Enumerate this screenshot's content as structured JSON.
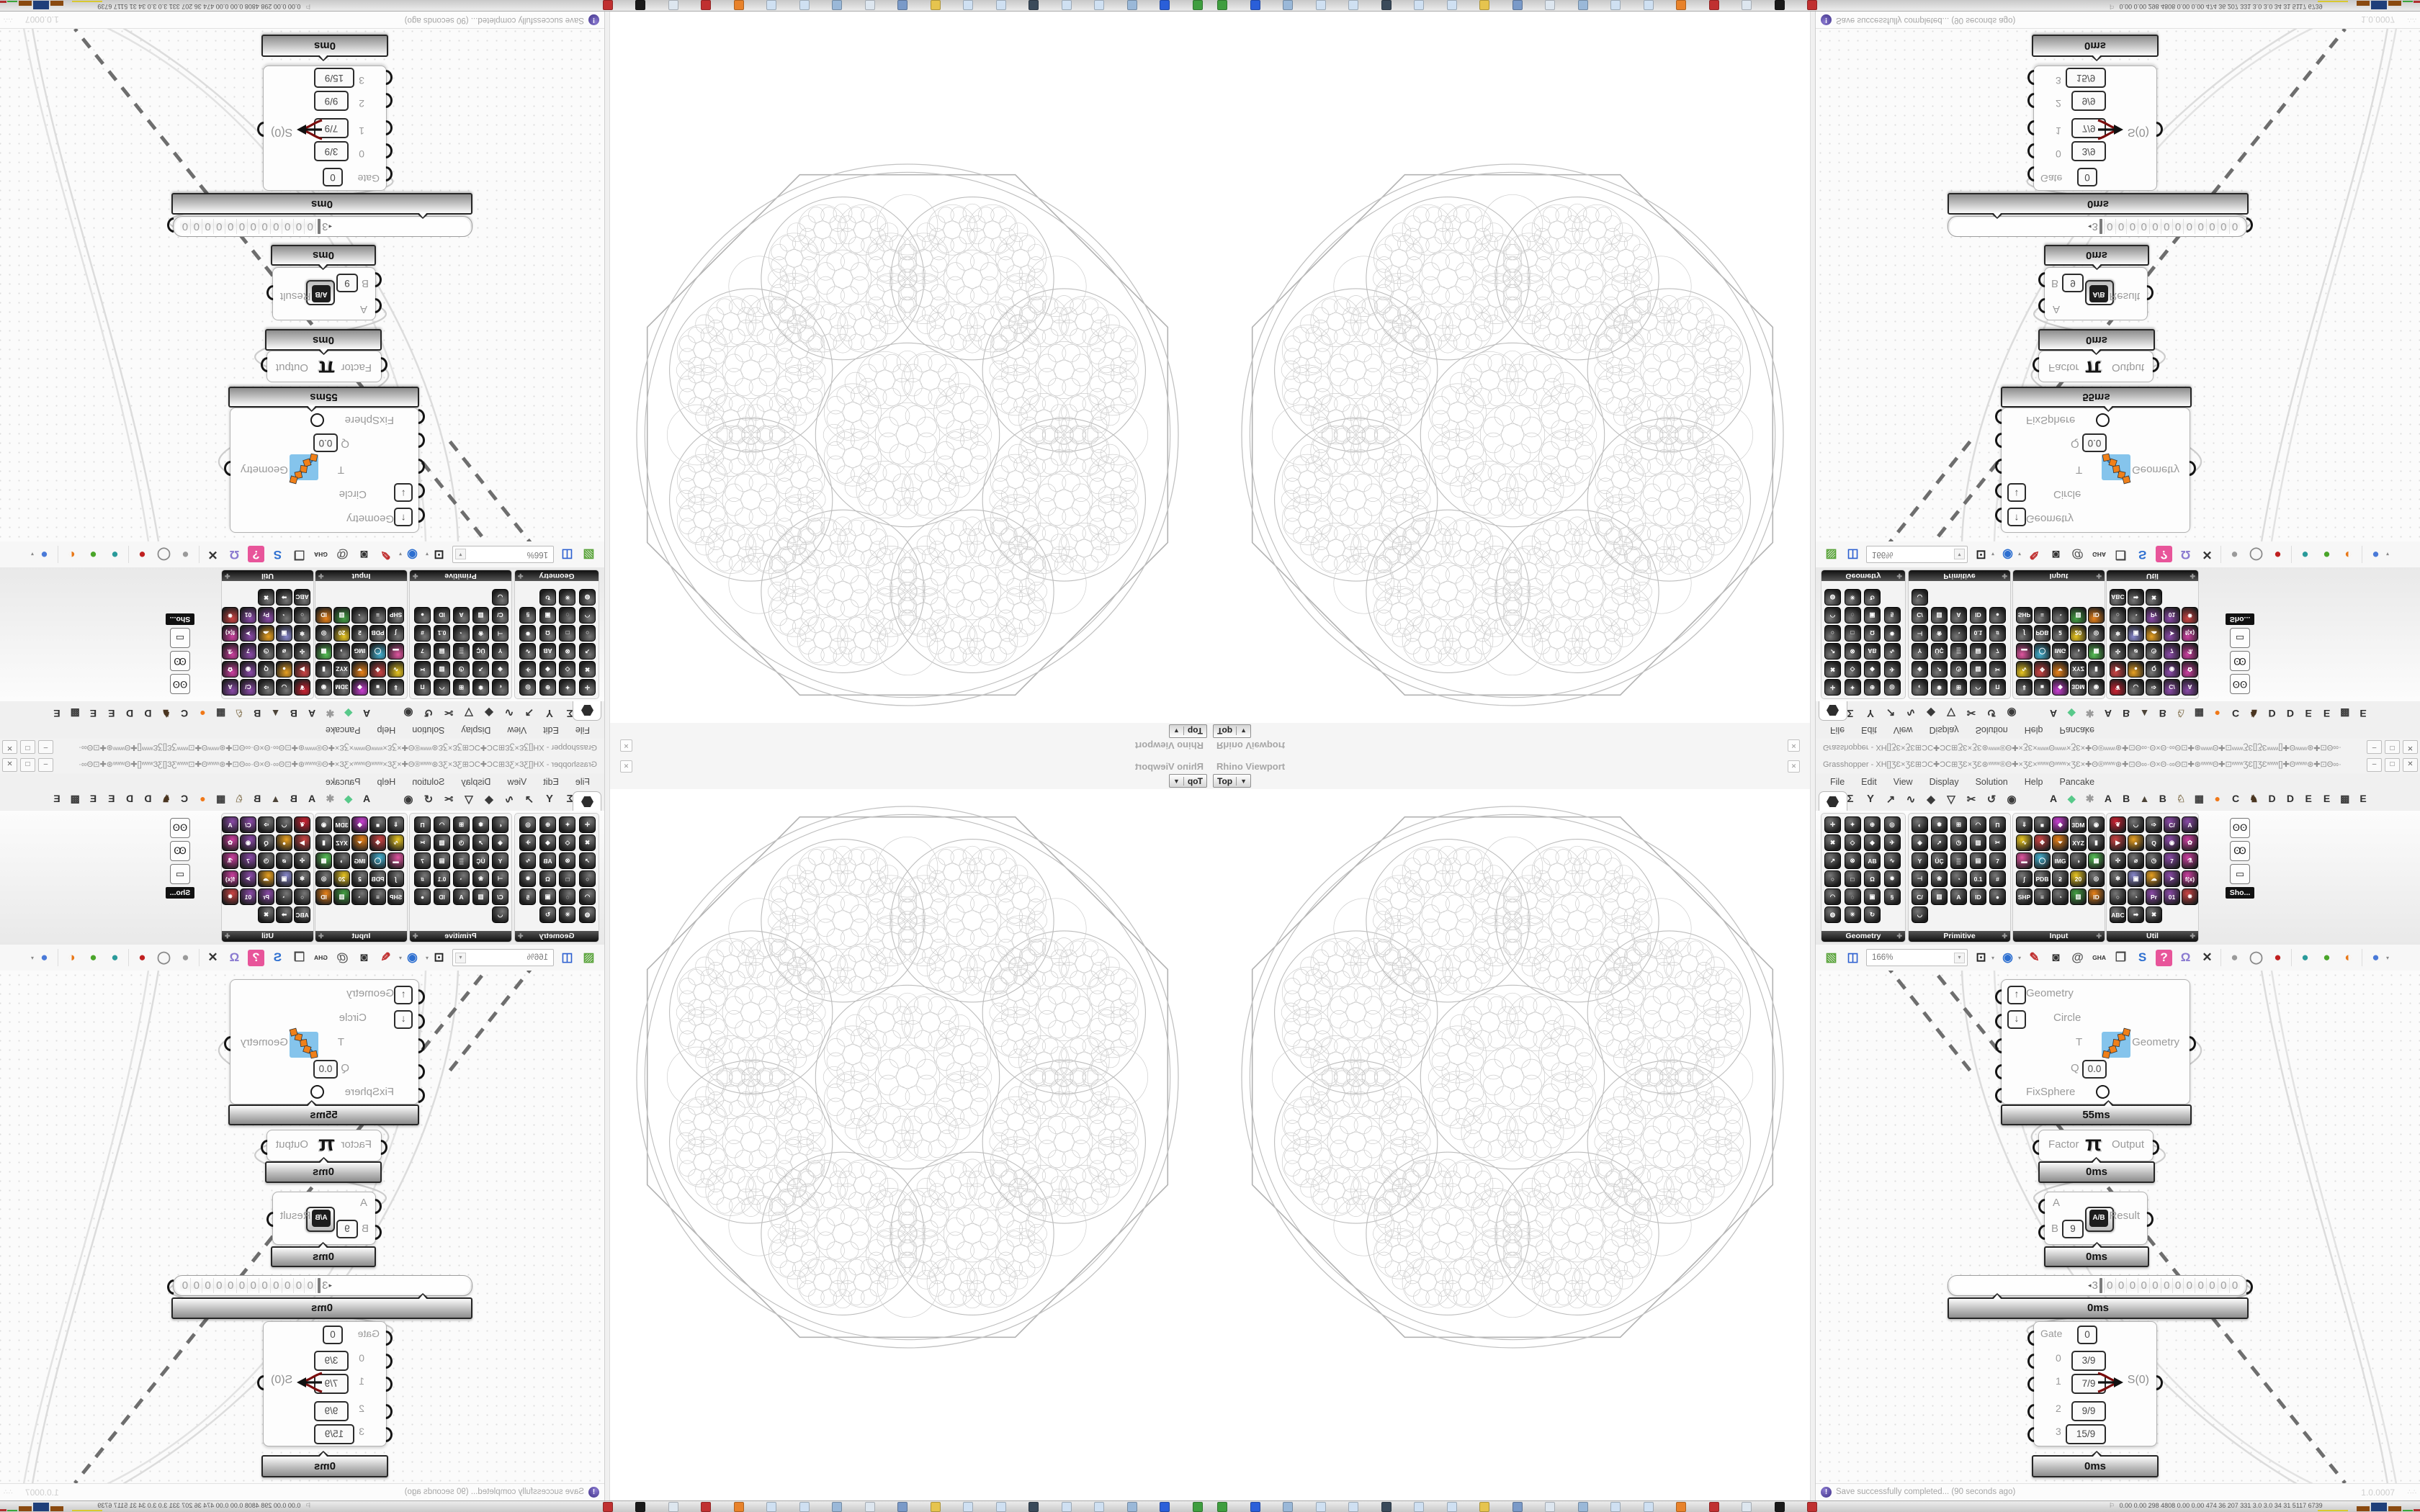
{
  "viewport": {
    "panel_title": "Rhino Viewport",
    "view": "Top",
    "close_glyph": "✕",
    "content_description": "octagonal Apollonian circle-packing fractal wireframe, light grey on white"
  },
  "window": {
    "title": "Grasshopper - XH[]ƷƐ×ƷƐ⊞ƆC✚ƆC⊞ƷƐ×ƷƐ⊛ʷʷʷ®Θ✚×ƷƐ×ʷʷʷΘʷʷʷ×ƷƐ×✚Θ®ʷʷʷ⊛✚⊡Θ∞·Θ×Θ·∞Θ⊡✚⊛ʷʷʷΘ✚⊡ʷʷʷƷƐ[]ƷƐʷʷʷ[]✚Θʷʷʷ⊛✚⊡Θ∞·Θ×Θ·∞Θ⊡✚⊛ʷʷʷ®Θ✚×ƷƐ×ʷʷʷΘ...",
    "min": "–",
    "max": "□",
    "close": "✕"
  },
  "menu": {
    "items": [
      "File",
      "Edit",
      "View",
      "Display",
      "Solution",
      "Help",
      "Pancake"
    ]
  },
  "tabs": {
    "selected": "Params",
    "icon_tabs": [
      "Σ",
      "Y",
      "↗",
      "∿",
      "◆",
      "▽",
      "✂",
      "↺",
      "◉"
    ],
    "plugin_tabs": [
      {
        "g": "A",
        "c": "#2e2e2e"
      },
      {
        "g": "◆",
        "c": "#58c98a"
      },
      {
        "g": "✱",
        "c": "#9a9a9a"
      },
      {
        "g": "A",
        "c": "#2e2e2e"
      },
      {
        "g": "B",
        "c": "#2e2e2e"
      },
      {
        "g": "▲",
        "c": "#4d4438"
      },
      {
        "g": "B",
        "c": "#2e2e2e"
      },
      {
        "g": "♘",
        "c": "#8a7a5a"
      },
      {
        "g": "▦",
        "c": "#3b3b3b"
      },
      {
        "g": "●",
        "c": "#f07818"
      },
      {
        "g": "C",
        "c": "#2e2e2e"
      },
      {
        "g": "♞",
        "c": "#4a3520"
      },
      {
        "g": "D",
        "c": "#2e2e2e"
      },
      {
        "g": "D",
        "c": "#2e2e2e"
      },
      {
        "g": "E",
        "c": "#2e2e2e"
      },
      {
        "g": "E",
        "c": "#2e2e2e"
      },
      {
        "g": "▩",
        "c": "#3b3b3b"
      },
      {
        "g": "E",
        "c": "#2e2e2e"
      }
    ]
  },
  "palette": {
    "groups": [
      {
        "label": "Geometry",
        "cols": 4,
        "icons": [
          {
            "g": "✛"
          },
          {
            "g": "✦"
          },
          {
            "g": "⊕"
          },
          {
            "g": "◎"
          },
          {
            "g": "✖"
          },
          {
            "g": "◇"
          },
          {
            "g": "◆"
          },
          {
            "g": "✈"
          },
          {
            "g": "↗"
          },
          {
            "g": "⊗"
          },
          {
            "g": "AB"
          },
          {
            "g": "∿"
          },
          {
            "g": "○"
          },
          {
            "g": "□"
          },
          {
            "g": "Ω"
          },
          {
            "g": "✸"
          },
          {
            "g": "◠"
          },
          {
            "g": "◌"
          },
          {
            "g": "▣"
          },
          {
            "g": "§"
          },
          {
            "g": "◍"
          },
          {
            "g": "✳"
          },
          {
            "g": "↻"
          }
        ]
      },
      {
        "label": "Primitive",
        "cols": 5,
        "icons": [
          {
            "g": "◐"
          },
          {
            "g": "✹"
          },
          {
            "g": "⊞"
          },
          {
            "g": "◠"
          },
          {
            "g": "Π"
          },
          {
            "g": "◈"
          },
          {
            "g": "➚"
          },
          {
            "g": "◷"
          },
          {
            "g": "▨"
          },
          {
            "g": "✂"
          },
          {
            "g": "Y"
          },
          {
            "g": "ÜÇ"
          },
          {
            "g": "▒"
          },
          {
            "g": "▤"
          },
          {
            "g": "7"
          },
          {
            "g": "⊣"
          },
          {
            "g": "❀"
          },
          {
            "g": "◔"
          },
          {
            "g": "0.1"
          },
          {
            "g": "#"
          },
          {
            "g": "C/"
          },
          {
            "g": "▥"
          },
          {
            "g": "A"
          },
          {
            "g": "ID"
          },
          {
            "g": "●"
          },
          {
            "g": "◡"
          }
        ]
      },
      {
        "label": "Input",
        "cols": 5,
        "icons": [
          {
            "g": "⇓"
          },
          {
            "g": "■"
          },
          {
            "g": "◆",
            "c": "#c93fd3"
          },
          {
            "g": "3DM"
          },
          {
            "g": "◉"
          },
          {
            "g": "∿",
            "c": "#e8c520"
          },
          {
            "g": "✥",
            "c": "#cc4444"
          },
          {
            "g": "⏷",
            "c": "#e8821a"
          },
          {
            "g": "XYZ"
          },
          {
            "g": "▮"
          },
          {
            "g": "▬",
            "c": "#e055a0"
          },
          {
            "g": "◯",
            "c": "#44b0d0"
          },
          {
            "g": "IMG"
          },
          {
            "g": "◑"
          },
          {
            "g": "▦",
            "c": "#55c055"
          },
          {
            "g": "∫"
          },
          {
            "g": "PDB"
          },
          {
            "g": "ƻ"
          },
          {
            "g": "20",
            "c": "#e8c520"
          },
          {
            "g": "◎"
          },
          {
            "g": "SHP"
          },
          {
            "g": "≡"
          },
          {
            "g": "◔"
          },
          {
            "g": "▥",
            "c": "#44a044"
          },
          {
            "g": "ID",
            "c": "#e8821a"
          }
        ]
      },
      {
        "label": "Util",
        "cols": 5,
        "icons": [
          {
            "g": "❦",
            "c": "#cc2233"
          },
          {
            "g": "◡"
          },
          {
            "g": "➩"
          },
          {
            "g": "C/",
            "c": "#8a4aa8"
          },
          {
            "g": "A",
            "c": "#8a4aa8"
          },
          {
            "g": "▶",
            "c": "#cc4444"
          },
          {
            "g": "●",
            "c": "#e8a020"
          },
          {
            "g": "Q"
          },
          {
            "g": "◉",
            "c": "#8a4aa8"
          },
          {
            "g": "✿",
            "c": "#cc3fa0"
          },
          {
            "g": "✣"
          },
          {
            "g": "⌀"
          },
          {
            "g": "◷"
          },
          {
            "g": "7",
            "c": "#8a4aa8"
          },
          {
            "g": "⚗",
            "c": "#cc3fa0"
          },
          {
            "g": "❄"
          },
          {
            "g": "▣",
            "c": "#8888cc"
          },
          {
            "g": "☁",
            "c": "#e8a020"
          },
          {
            "g": "➤",
            "c": "#8a4aa8"
          },
          {
            "g": "f(x)",
            "c": "#cc3fa0"
          },
          {
            "g": "○"
          },
          {
            "g": "◔"
          },
          {
            "g": "Pr",
            "c": "#8a4aa8"
          },
          {
            "g": "01",
            "c": "#8a4aa8"
          },
          {
            "g": "✸",
            "c": "#cc4444"
          },
          {
            "g": "ABC"
          },
          {
            "g": "➡"
          },
          {
            "g": "✖"
          }
        ]
      }
    ],
    "mini_group": {
      "label": "Sho...",
      "icons": [
        "goggles-icon",
        "goggles-sketch-icon",
        "easel-icon"
      ],
      "glyphs": [
        "ꙨꙨ",
        "Ꙭ",
        "▭"
      ]
    }
  },
  "toolbar": {
    "zoom_level": "166%",
    "items": [
      {
        "n": "open-file-icon",
        "g": "▧",
        "c": "#59a33a"
      },
      {
        "n": "save-file-icon",
        "g": "◫",
        "c": "#2c5fd0"
      },
      {
        "n": "zoombox"
      },
      {
        "n": "zoom-extents-icon",
        "g": "⊡",
        "c": "#222222"
      },
      {
        "n": "caret"
      },
      {
        "n": "preview-eye-icon",
        "g": "◉",
        "c": "#2d6fd0"
      },
      {
        "n": "caret"
      },
      {
        "n": "sketch-pencil-icon",
        "g": "✎",
        "c": "#c03030"
      },
      {
        "n": "camera-icon",
        "g": "◙",
        "c": "#333333"
      },
      {
        "n": "remote-at-icon",
        "g": "@",
        "c": "#555555"
      },
      {
        "n": "gha-installer-icon",
        "g": "GHA",
        "c": "#333333"
      },
      {
        "n": "window-layout-icon",
        "g": "❐",
        "c": "#444444"
      },
      {
        "n": "finder-s-icon",
        "g": "S",
        "c": "#2d6fd0"
      },
      {
        "n": "cluster-question-icon",
        "g": "?",
        "c": "#ffffff",
        "bg": "#e8559a"
      },
      {
        "n": "galapagos-bulb-icon",
        "g": "Ω",
        "c": "#8a7ad0"
      },
      {
        "n": "crossed-wires-icon",
        "g": "✕",
        "c": "#333333"
      },
      {
        "n": "sep"
      },
      {
        "n": "bake-grey-icon",
        "g": "●",
        "c": "#9a9a9a"
      },
      {
        "n": "bake-ring-icon",
        "g": "◯",
        "c": "#888888"
      },
      {
        "n": "bake-red-icon",
        "g": "●",
        "c": "#c02020"
      },
      {
        "n": "sep"
      },
      {
        "n": "bake-teal-icon",
        "g": "●",
        "c": "#2a9a9a"
      },
      {
        "n": "bake-green-icon",
        "g": "●",
        "c": "#4aa52a"
      },
      {
        "n": "bake-orange-icon",
        "g": "◐",
        "c": "#e87818"
      },
      {
        "n": "sep"
      },
      {
        "n": "solver-blue-icon",
        "g": "●",
        "c": "#4a7ad8"
      },
      {
        "n": "caret"
      }
    ]
  },
  "canvas_components": {
    "pipeline": {
      "inputs": [
        {
          "label": "Geometry",
          "mod": "↑"
        },
        {
          "label": "Circle",
          "mod": "↓"
        },
        {
          "label": "T"
        },
        {
          "label": "Q",
          "value": "0.0"
        },
        {
          "label": "FixSphere",
          "toggle": true
        }
      ],
      "output": "Geometry",
      "time": "55ms"
    },
    "pi": {
      "input": "Factor",
      "glyph": "π",
      "output": "Output",
      "time": "0ms"
    },
    "division": {
      "a": "A",
      "b": "B",
      "b_value": "9",
      "icon": "A/B",
      "output": "Result",
      "time": "0ms"
    },
    "scroller": {
      "marker": "◂",
      "prefix": "3",
      "digits": [
        "0",
        "0",
        "0",
        "0",
        "0",
        "0",
        "0",
        "0",
        "0",
        "0",
        "0",
        "0"
      ],
      "time": "0ms"
    },
    "gate": {
      "label": "Gate",
      "value": "0",
      "rows": [
        {
          "i": "0",
          "v": "3/9"
        },
        {
          "i": "1",
          "v": "7/9"
        },
        {
          "i": "2",
          "v": "9/9"
        },
        {
          "i": "3",
          "v": "15/9"
        }
      ],
      "output": "S(0)",
      "time": "0ms"
    }
  },
  "statusbar": {
    "message": "Save successfully completed... (90 seconds ago)",
    "version": "1.0.0007"
  },
  "taskbar": {
    "tray_flag": "⚐",
    "tray_values": "0.00 0.00  298  4808 0.00 0.00  474   36   207   331   3.0    3.0    34     31   5117 6739",
    "icon_colors": [
      "#3f9e3f",
      "#2b5fd9",
      "#9ab8d8",
      "#cfe0f2",
      "#cfe0f2",
      "#3a4a5a",
      "#cfe0f2",
      "#cfe0f2",
      "#e6c44e",
      "#7a9ac8",
      "#dde6ef",
      "#9ab8d8",
      "#cfe0f2",
      "#cfe0f2",
      "#e8822a",
      "#c03030",
      "#dde6ef",
      "#1a1a1a",
      "#c03030"
    ],
    "graph_colors": {
      "yellow": "#d8c830",
      "brown": "#8a4a10",
      "blue": "#1f3f7a",
      "green": "#3aa53a",
      "red": "#b03030"
    }
  }
}
